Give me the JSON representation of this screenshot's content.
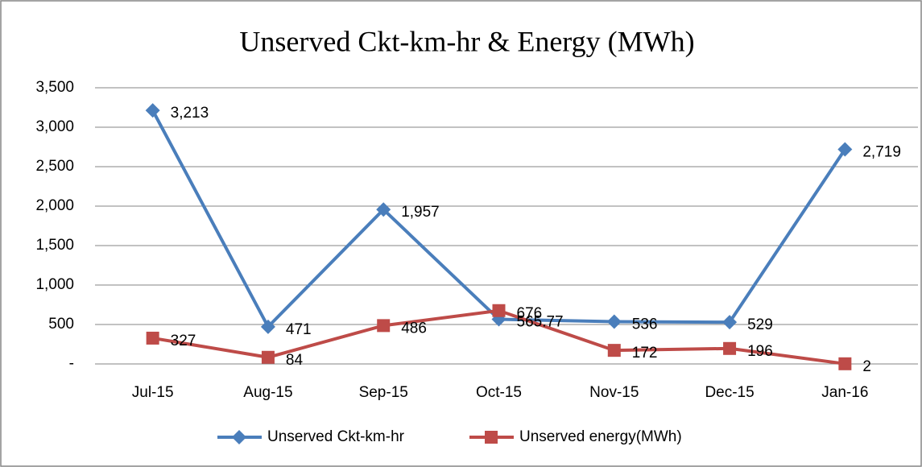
{
  "chart_data": {
    "type": "line",
    "title": "Unserved Ckt-km-hr & Energy (MWh)",
    "categories": [
      "Jul-15",
      "Aug-15",
      "Sep-15",
      "Oct-15",
      "Nov-15",
      "Dec-15",
      "Jan-16"
    ],
    "series": [
      {
        "name": "Unserved Ckt-km-hr",
        "color": "#4a7ebb",
        "marker": "diamond",
        "values": [
          3213,
          471,
          1957,
          565.77,
          536,
          529,
          2719
        ],
        "value_labels": [
          "3,213",
          "471",
          "1,957",
          "565.77",
          "536",
          "529",
          "2,719"
        ]
      },
      {
        "name": "Unserved energy(MWh)",
        "color": "#be4b48",
        "marker": "square",
        "values": [
          327,
          84,
          486,
          676,
          172,
          196,
          2
        ],
        "value_labels": [
          "327",
          "84",
          "486",
          "676",
          "172",
          "196",
          "2"
        ]
      }
    ],
    "ylim": [
      0,
      3500
    ],
    "yticks": [
      {
        "value": 0,
        "label": "-"
      },
      500,
      {
        "value": 1000,
        "label": "1,000"
      },
      {
        "value": 1500,
        "label": "1,500"
      },
      {
        "value": 2000,
        "label": "2,000"
      },
      {
        "value": 2500,
        "label": "2,500"
      },
      {
        "value": 3000,
        "label": "3,000"
      },
      {
        "value": 3500,
        "label": "3,500"
      }
    ],
    "grid": true,
    "legend": "bottom"
  }
}
